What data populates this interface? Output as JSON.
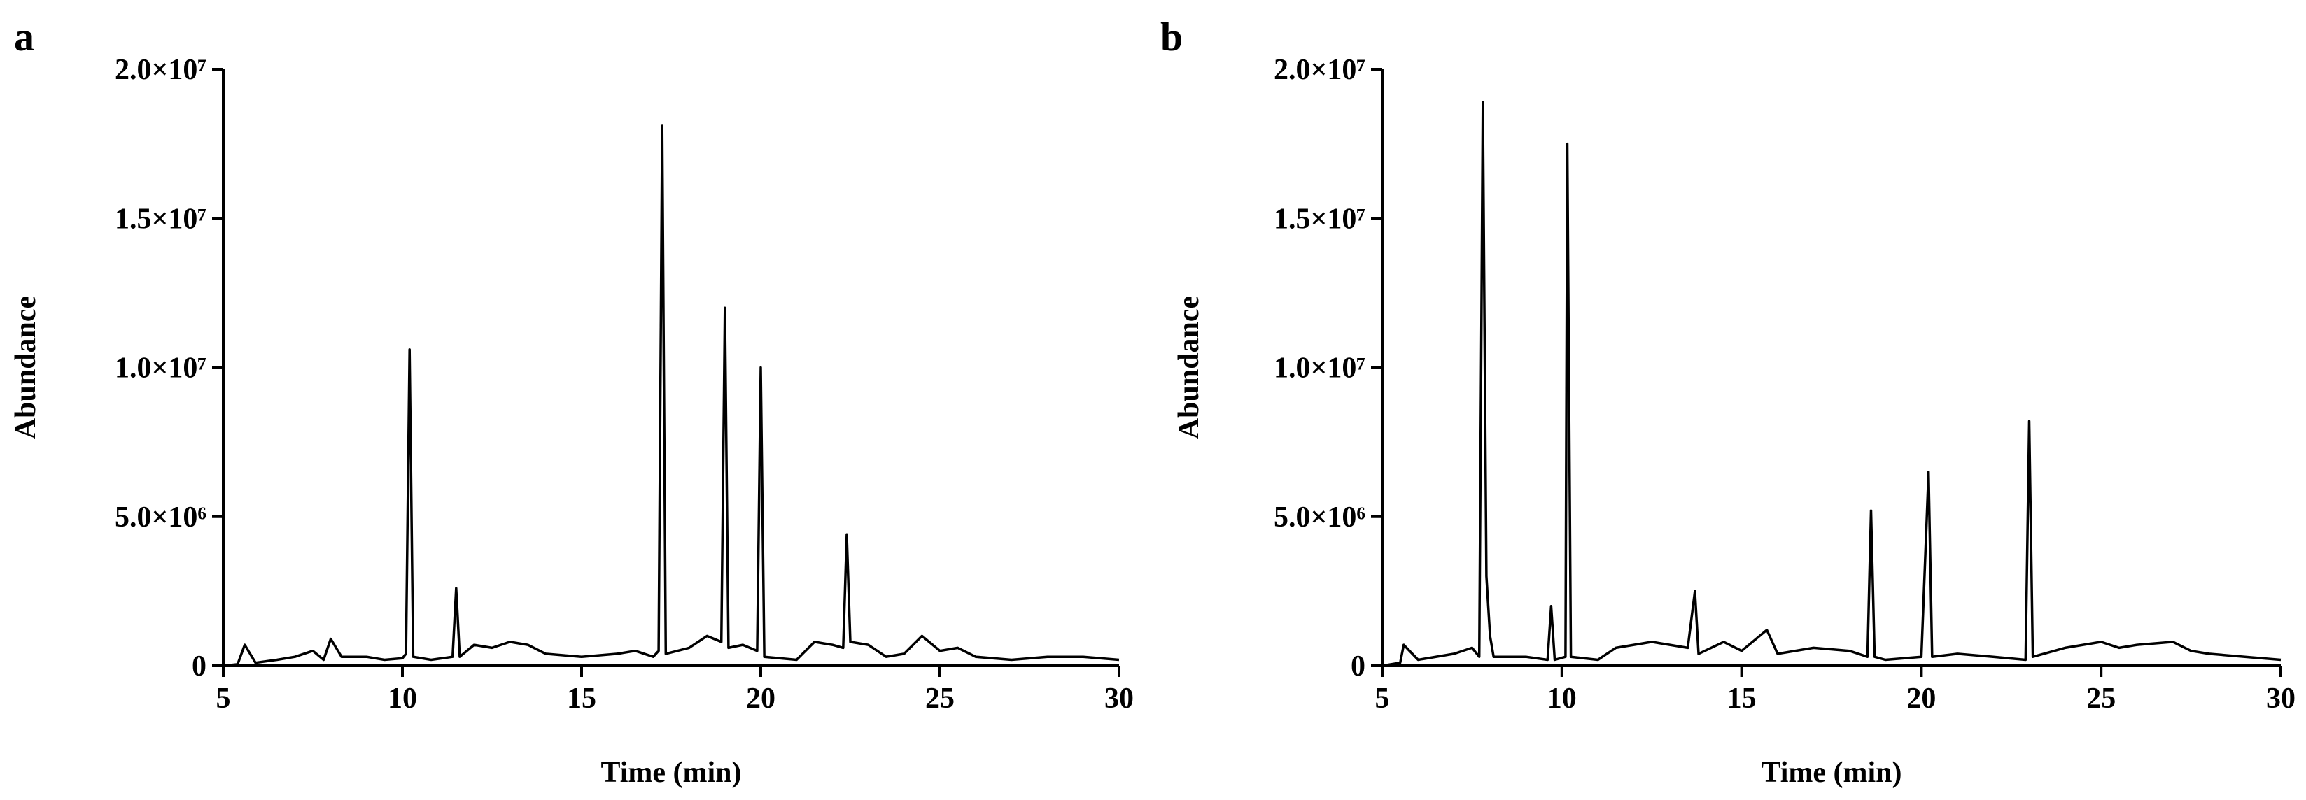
{
  "chart_data": [
    {
      "type": "line",
      "title": "a",
      "x_label": "Time (min)",
      "y_label": "Abundance",
      "color": "#000000",
      "xlim": [
        5,
        30
      ],
      "xticks": [
        5,
        10,
        15,
        20,
        25,
        30
      ],
      "ylim": [
        0,
        20000000
      ],
      "yticks": [
        0,
        {
          "value": 5000000,
          "label": "5.0×10⁶"
        },
        {
          "value": 10000000,
          "label": "1.0×10⁷"
        },
        {
          "value": 15000000,
          "label": "1.5×10⁷"
        },
        {
          "value": 20000000,
          "label": "2.0×10⁷"
        }
      ],
      "x": [
        5,
        5.4,
        5.6,
        5.9,
        6.5,
        7,
        7.5,
        7.8,
        8,
        8.3,
        9,
        9.5,
        10,
        10.1,
        10.2,
        10.3,
        10.8,
        11.4,
        11.5,
        11.6,
        12,
        12.5,
        13,
        13.5,
        14,
        15,
        16,
        16.5,
        17,
        17.15,
        17.25,
        17.35,
        18,
        18.5,
        18.9,
        19,
        19.1,
        19.5,
        19.9,
        20,
        20.1,
        21,
        21.5,
        22,
        22.3,
        22.4,
        22.5,
        23,
        23.5,
        24,
        24.5,
        25,
        25.5,
        26,
        27,
        28,
        29,
        30
      ],
      "values": [
        0,
        50000,
        700000,
        100000,
        200000,
        300000,
        500000,
        200000,
        900000,
        300000,
        300000,
        200000,
        250000,
        400000,
        10600000,
        300000,
        200000,
        300000,
        2600000,
        300000,
        700000,
        600000,
        800000,
        700000,
        400000,
        300000,
        400000,
        500000,
        300000,
        500000,
        18100000,
        400000,
        600000,
        1000000,
        800000,
        12000000,
        600000,
        700000,
        500000,
        10000000,
        300000,
        200000,
        800000,
        700000,
        600000,
        4400000,
        800000,
        700000,
        300000,
        400000,
        1000000,
        500000,
        600000,
        300000,
        200000,
        300000,
        300000,
        200000
      ]
    },
    {
      "type": "line",
      "title": "b",
      "x_label": "Time (min)",
      "y_label": "Abundance",
      "color": "#000000",
      "xlim": [
        5,
        30
      ],
      "xticks": [
        5,
        10,
        15,
        20,
        25,
        30
      ],
      "ylim": [
        0,
        20000000
      ],
      "yticks": [
        0,
        {
          "value": 5000000,
          "label": "5.0×10⁶"
        },
        {
          "value": 10000000,
          "label": "1.0×10⁷"
        },
        {
          "value": 15000000,
          "label": "1.5×10⁷"
        },
        {
          "value": 20000000,
          "label": "2.0×10⁷"
        }
      ],
      "x": [
        5,
        5.5,
        5.6,
        6,
        7,
        7.5,
        7.7,
        7.8,
        7.9,
        8,
        8.1,
        9,
        9.6,
        9.7,
        9.8,
        10.1,
        10.15,
        10.25,
        11,
        11.5,
        12,
        12.5,
        13,
        13.5,
        13.7,
        13.8,
        14.5,
        15,
        15.7,
        16,
        17,
        18,
        18.5,
        18.6,
        18.7,
        19,
        20,
        20.2,
        20.3,
        21,
        22,
        22.9,
        23,
        23.1,
        24,
        24.5,
        25,
        25.5,
        26,
        27,
        27.5,
        28,
        29,
        30
      ],
      "values": [
        0,
        100000,
        700000,
        200000,
        400000,
        600000,
        300000,
        18900000,
        3000000,
        1000000,
        300000,
        300000,
        200000,
        2000000,
        200000,
        300000,
        17500000,
        300000,
        200000,
        600000,
        700000,
        800000,
        700000,
        600000,
        2500000,
        400000,
        800000,
        500000,
        1200000,
        400000,
        600000,
        500000,
        300000,
        5200000,
        300000,
        200000,
        300000,
        6500000,
        300000,
        400000,
        300000,
        200000,
        8200000,
        300000,
        600000,
        700000,
        800000,
        600000,
        700000,
        800000,
        500000,
        400000,
        300000,
        200000
      ]
    }
  ]
}
